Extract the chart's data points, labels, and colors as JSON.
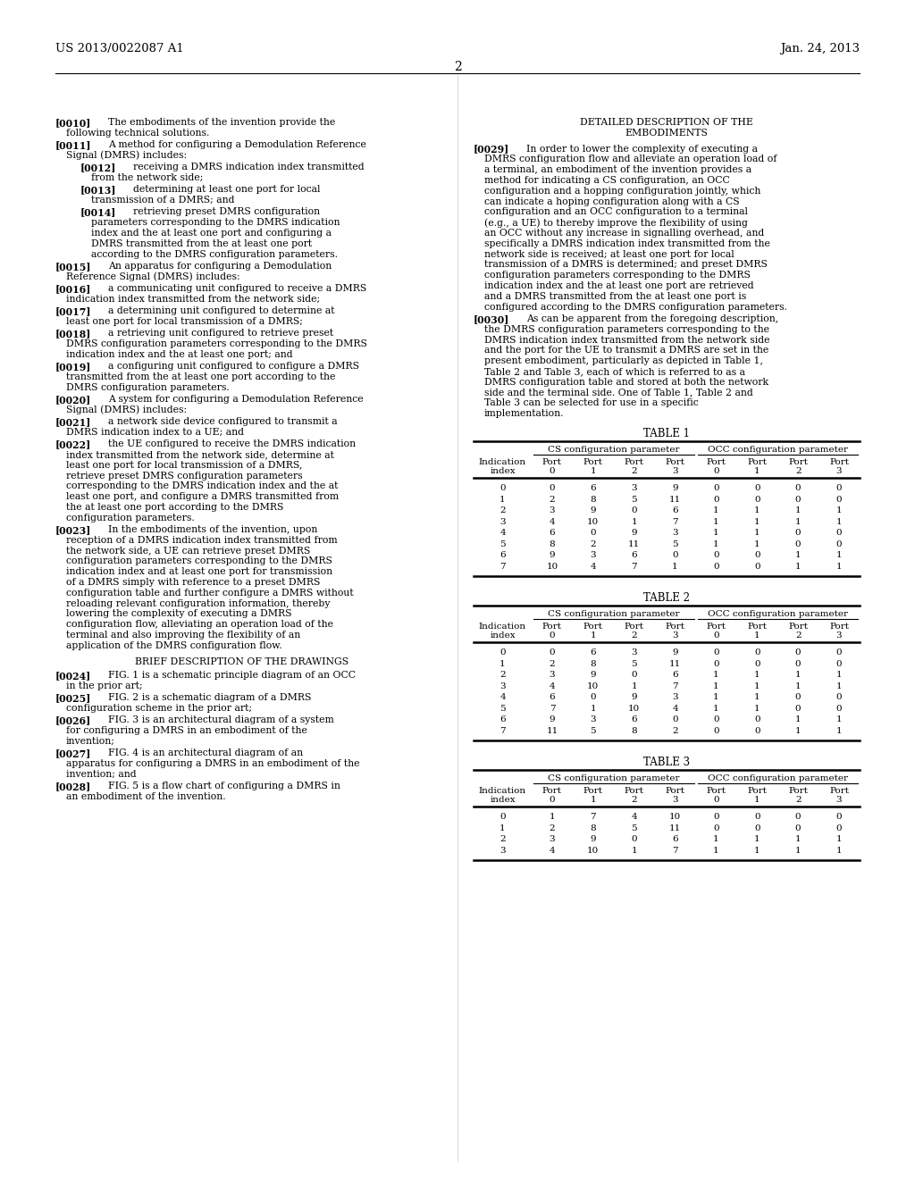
{
  "header_left": "US 2013/0022087 A1",
  "header_right": "Jan. 24, 2013",
  "page_number": "2",
  "background_color": "#ffffff",
  "table1": {
    "title": "TABLE 1",
    "header_span1": "CS configuration parameter",
    "header_span2": "OCC configuration parameter",
    "col_headers": [
      "Indication\nindex",
      "Port\n0",
      "Port\n1",
      "Port\n2",
      "Port\n3",
      "Port\n0",
      "Port\n1",
      "Port\n2",
      "Port\n3"
    ],
    "data": [
      [
        0,
        0,
        6,
        3,
        9,
        0,
        0,
        0,
        0
      ],
      [
        1,
        2,
        8,
        5,
        11,
        0,
        0,
        0,
        0
      ],
      [
        2,
        3,
        9,
        0,
        6,
        1,
        1,
        1,
        1
      ],
      [
        3,
        4,
        10,
        1,
        7,
        1,
        1,
        1,
        1
      ],
      [
        4,
        6,
        0,
        9,
        3,
        1,
        1,
        0,
        0
      ],
      [
        5,
        8,
        2,
        11,
        5,
        1,
        1,
        0,
        0
      ],
      [
        6,
        9,
        3,
        6,
        0,
        0,
        0,
        1,
        1
      ],
      [
        7,
        10,
        4,
        7,
        1,
        0,
        0,
        1,
        1
      ]
    ]
  },
  "table2": {
    "title": "TABLE 2",
    "header_span1": "CS configuration parameter",
    "header_span2": "OCC configuration parameter",
    "col_headers": [
      "Indication\nindex",
      "Port\n0",
      "Port\n1",
      "Port\n2",
      "Port\n3",
      "Port\n0",
      "Port\n1",
      "Port\n2",
      "Port\n3"
    ],
    "data": [
      [
        0,
        0,
        6,
        3,
        9,
        0,
        0,
        0,
        0
      ],
      [
        1,
        2,
        8,
        5,
        11,
        0,
        0,
        0,
        0
      ],
      [
        2,
        3,
        9,
        0,
        6,
        1,
        1,
        1,
        1
      ],
      [
        3,
        4,
        10,
        1,
        7,
        1,
        1,
        1,
        1
      ],
      [
        4,
        6,
        0,
        9,
        3,
        1,
        1,
        0,
        0
      ],
      [
        5,
        7,
        1,
        10,
        4,
        1,
        1,
        0,
        0
      ],
      [
        6,
        9,
        3,
        6,
        0,
        0,
        0,
        1,
        1
      ],
      [
        7,
        11,
        5,
        8,
        2,
        0,
        0,
        1,
        1
      ]
    ]
  },
  "table3": {
    "title": "TABLE 3",
    "header_span1": "CS configuration parameter",
    "header_span2": "OCC configuration parameter",
    "col_headers": [
      "Indication\nindex",
      "Port\n0",
      "Port\n1",
      "Port\n2",
      "Port\n3",
      "Port\n0",
      "Port\n1",
      "Port\n2",
      "Port\n3"
    ],
    "data": [
      [
        0,
        1,
        7,
        4,
        10,
        0,
        0,
        0,
        0
      ],
      [
        1,
        2,
        8,
        5,
        11,
        0,
        0,
        0,
        0
      ],
      [
        2,
        3,
        9,
        0,
        6,
        1,
        1,
        1,
        1
      ],
      [
        3,
        4,
        10,
        1,
        7,
        1,
        1,
        1,
        1
      ]
    ]
  }
}
